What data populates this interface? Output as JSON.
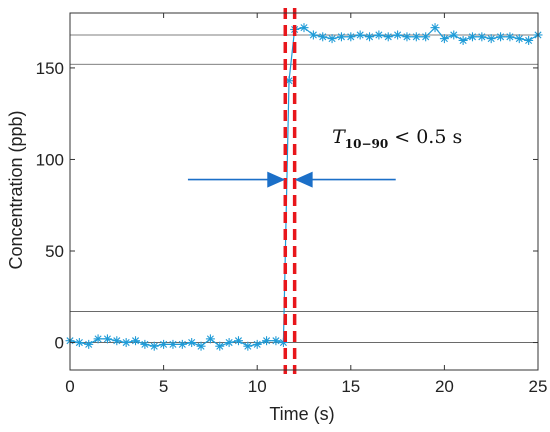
{
  "chart_data": {
    "type": "line",
    "xlabel": "Time (s)",
    "ylabel": "Concentration (ppb)",
    "xlim": [
      0,
      25
    ],
    "ylim": [
      -15,
      180
    ],
    "xticks": [
      0,
      5,
      10,
      15,
      20,
      25
    ],
    "yticks": [
      0,
      50,
      100,
      150
    ],
    "grid": false,
    "series_color": "#1f9bd7",
    "marker": "asterisk",
    "reference_lines_y": [
      0,
      17,
      152,
      168
    ],
    "reference_line_color": "#555555",
    "vertical_lines_x": [
      11.5,
      12.0
    ],
    "vertical_line_color": "#e8161b",
    "arrow_color": "#1b6fc8",
    "arrow_y": 89,
    "arrow_left_from_x": 6.3,
    "arrow_right_from_x": 17.4,
    "annotation": {
      "T": "T",
      "subscript": "10−90",
      "rest": " < 0.5 s",
      "x": 14.0,
      "y": 109
    },
    "series": [
      {
        "x": [
          0,
          0.5,
          1,
          1.5,
          2,
          2.5,
          3,
          3.5,
          4,
          4.5,
          5,
          5.5,
          6,
          6.5,
          7,
          7.5,
          8,
          8.5,
          9,
          9.5,
          10,
          10.5,
          11,
          11.4,
          11.7,
          12.0,
          12.5,
          13,
          13.5,
          14,
          14.5,
          15,
          15.5,
          16,
          16.5,
          17,
          17.5,
          18,
          18.5,
          19,
          19.5,
          20,
          20.5,
          21,
          21.5,
          22,
          22.5,
          23,
          23.5,
          24,
          24.5,
          25
        ],
        "y": [
          1,
          0,
          -1,
          2,
          2,
          1,
          0,
          1,
          -1,
          -2,
          -1,
          -1,
          -1,
          0,
          -2,
          2,
          -2,
          0,
          1,
          -2,
          -1,
          1,
          1,
          0,
          143,
          171,
          172,
          168,
          167,
          166,
          167,
          167,
          168,
          167,
          168,
          167,
          168,
          167,
          167,
          167,
          172,
          166,
          168,
          165,
          167,
          167,
          166,
          167,
          167,
          166,
          165,
          168
        ]
      }
    ]
  }
}
